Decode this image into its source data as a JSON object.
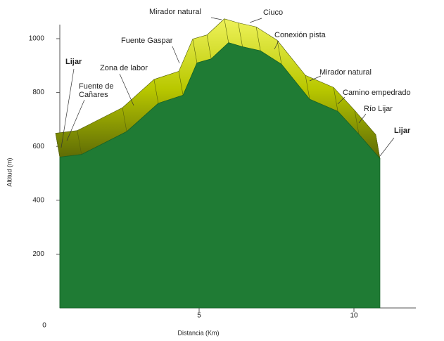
{
  "chart_data": {
    "type": "area",
    "x_label": "Distancia (Km)",
    "y_label": "Altitud (m)",
    "x": [
      0.5,
      1.2,
      2.66,
      3.68,
      4.48,
      4.93,
      5.39,
      5.95,
      6.4,
      6.98,
      7.66,
      8.57,
      9.48,
      10.16,
      10.84
    ],
    "values": [
      560,
      570,
      655,
      760,
      790,
      910,
      925,
      985,
      970,
      955,
      905,
      775,
      730,
      645,
      555
    ],
    "color": "#1f7b34",
    "ridge_color": "#c9d600",
    "xlim": [
      0,
      12
    ],
    "ylim": [
      0,
      1000
    ],
    "xticks": [
      0,
      5,
      10
    ],
    "yticks": [
      200,
      400,
      600,
      800,
      1000
    ],
    "annotations": [
      [
        "Lijar"
      ],
      [
        "Fuente de",
        "Cañares"
      ],
      [
        "Zona de labor"
      ],
      [
        "Fuente Gaspar"
      ],
      [
        "Mirador natural"
      ],
      [
        "Ciuco"
      ],
      [
        "Conexión pista"
      ],
      [
        "Mirador natural"
      ],
      [
        "Camino empedrado"
      ],
      [
        "Río Lijar"
      ],
      [
        "Lijar"
      ]
    ]
  }
}
